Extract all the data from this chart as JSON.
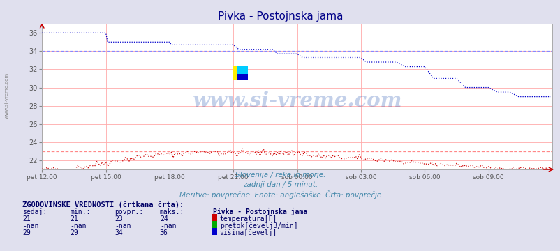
{
  "title": "Pivka - Postojnska jama",
  "subtitle1": "Slovenija / reke in morje.",
  "subtitle2": "zadnji dan / 5 minut.",
  "subtitle3": "Meritve: povprečne  Enote: anglešaške  Črta: povprečje",
  "xtick_labels": [
    "pet 12:00",
    "pet 15:00",
    "pet 18:00",
    "pet 21:00",
    "sob 00:00",
    "sob 03:00",
    "sob 06:00",
    "sob 09:00"
  ],
  "xtick_positions": [
    0,
    36,
    72,
    108,
    144,
    180,
    216,
    252
  ],
  "ytick_vals": [
    22,
    24,
    26,
    28,
    30,
    32,
    34,
    36
  ],
  "ylim": [
    21.0,
    37.0
  ],
  "xlim": [
    0,
    288
  ],
  "bg_color": "#e0e0ee",
  "plot_bg": "#ffffff",
  "title_color": "#000088",
  "subtitle_color": "#4488aa",
  "grid_color": "#ffaaaa",
  "temp_color": "#cc0000",
  "flow_color": "#00aa00",
  "height_color": "#0000cc",
  "avg_temp_color": "#ff8888",
  "avg_height_color": "#8888ff",
  "watermark_text": "www.si-vreme.com",
  "watermark_color": "#1144aa",
  "side_label": "www.si-vreme.com",
  "table_section_title": "ZGODOVINSKE VREDNOSTI (črtkana črta):",
  "table_col_headers": [
    "sedaj:",
    "min.:",
    "povpr.:",
    "maks.:"
  ],
  "legend_station": "Pivka - Postojnska jama",
  "rows": [
    {
      "vals": [
        "21",
        "21",
        "23",
        "24"
      ],
      "label": "temperatura[F]",
      "color": "#cc0000"
    },
    {
      "vals": [
        "-nan",
        "-nan",
        "-nan",
        "-nan"
      ],
      "label": "pretok[čevelj3/min]",
      "color": "#00aa00"
    },
    {
      "vals": [
        "29",
        "29",
        "34",
        "36"
      ],
      "label": "višina[čevelj]",
      "color": "#0000cc"
    }
  ],
  "temp_avg_val": 23.0,
  "height_avg_val": 34.0
}
